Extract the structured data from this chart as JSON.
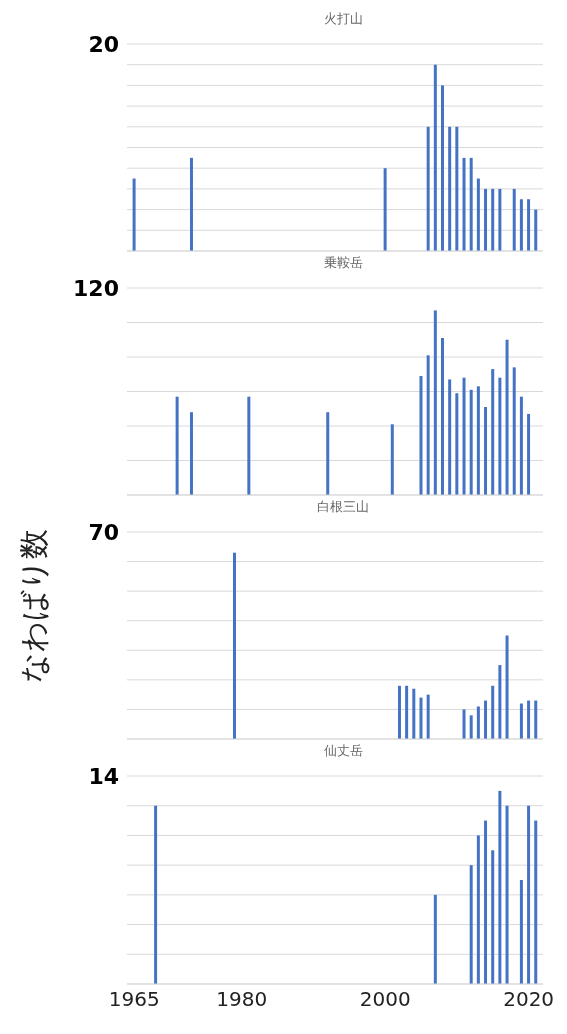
{
  "chart_data": [
    {
      "type": "bar",
      "title": "火打山",
      "x": [
        1965,
        1973,
        2000,
        2006,
        2007,
        2008,
        2009,
        2010,
        2011,
        2012,
        2013,
        2014,
        2015,
        2016,
        2018,
        2019,
        2020,
        2021
      ],
      "values": [
        7,
        9,
        8,
        12,
        18,
        16,
        12,
        12,
        9,
        9,
        7,
        6,
        6,
        6,
        6,
        5,
        5,
        4
      ],
      "color": "#4472c4",
      "xlim": [
        1964,
        2022
      ],
      "ylim": [
        0,
        20
      ],
      "yticks": [
        {
          "value": 0,
          "label": null
        },
        {
          "value": 2,
          "label": null
        },
        {
          "value": 4,
          "label": null
        },
        {
          "value": 6,
          "label": null
        },
        {
          "value": 8,
          "label": null
        },
        {
          "value": 10,
          "label": null
        },
        {
          "value": 12,
          "label": null
        },
        {
          "value": 14,
          "label": null
        },
        {
          "value": 16,
          "label": null
        },
        {
          "value": 18,
          "label": null
        },
        20
      ],
      "grid": "y",
      "tick_labels": "y"
    },
    {
      "type": "bar",
      "title": "乗鞍岳",
      "x": [
        1971,
        1973,
        1981,
        1992,
        2001,
        2005,
        2006,
        2007,
        2008,
        2009,
        2010,
        2011,
        2012,
        2013,
        2014,
        2015,
        2016,
        2017,
        2018,
        2019,
        2020
      ],
      "values": [
        57,
        48,
        57,
        48,
        41,
        69,
        81,
        107,
        91,
        67,
        59,
        68,
        61,
        63,
        51,
        73,
        68,
        90,
        74,
        57,
        47
      ],
      "color": "#4472c4",
      "xlim": [
        1964,
        2022
      ],
      "ylim": [
        0,
        120
      ],
      "yticks": [
        {
          "value": 0,
          "label": null
        },
        {
          "value": 20,
          "label": null
        },
        {
          "value": 40,
          "label": null
        },
        {
          "value": 60,
          "label": null
        },
        {
          "value": 80,
          "label": null
        },
        {
          "value": 100,
          "label": null
        },
        120
      ],
      "grid": "y",
      "tick_labels": "y"
    },
    {
      "type": "bar",
      "title": "白根三山",
      "ylabel": "なわばり数",
      "x": [
        1979,
        2002,
        2003,
        2004,
        2005,
        2006,
        2011,
        2012,
        2013,
        2014,
        2015,
        2016,
        2017,
        2019,
        2020,
        2021
      ],
      "values": [
        63,
        18,
        18,
        17,
        14,
        15,
        10,
        8,
        11,
        13,
        18,
        25,
        35,
        12,
        13,
        13
      ],
      "color": "#4472c4",
      "xlim": [
        1964,
        2022
      ],
      "ylim": [
        0,
        70
      ],
      "yticks": [
        {
          "value": 0,
          "label": null
        },
        {
          "value": 10,
          "label": null
        },
        {
          "value": 20,
          "label": null
        },
        {
          "value": 30,
          "label": null
        },
        {
          "value": 40,
          "label": null
        },
        {
          "value": 50,
          "label": null
        },
        {
          "value": 60,
          "label": null
        },
        70
      ],
      "grid": "y",
      "tick_labels": "y"
    },
    {
      "type": "bar",
      "title": "仙丈岳",
      "x": [
        1968,
        2007,
        2012,
        2013,
        2014,
        2015,
        2016,
        2017,
        2019,
        2020,
        2021
      ],
      "values": [
        12,
        6,
        8,
        10,
        11,
        9,
        13,
        12,
        7,
        12,
        11
      ],
      "color": "#4472c4",
      "xlim": [
        1964,
        2022
      ],
      "xticks": [
        1965,
        1980,
        2000,
        2020
      ],
      "ylim": [
        0,
        14
      ],
      "yticks": [
        {
          "value": 0,
          "label": null
        },
        {
          "value": 2,
          "label": null
        },
        {
          "value": 4,
          "label": null
        },
        {
          "value": 6,
          "label": null
        },
        {
          "value": 8,
          "label": null
        },
        {
          "value": 10,
          "label": null
        },
        {
          "value": 12,
          "label": null
        },
        14
      ],
      "grid": "y"
    }
  ]
}
